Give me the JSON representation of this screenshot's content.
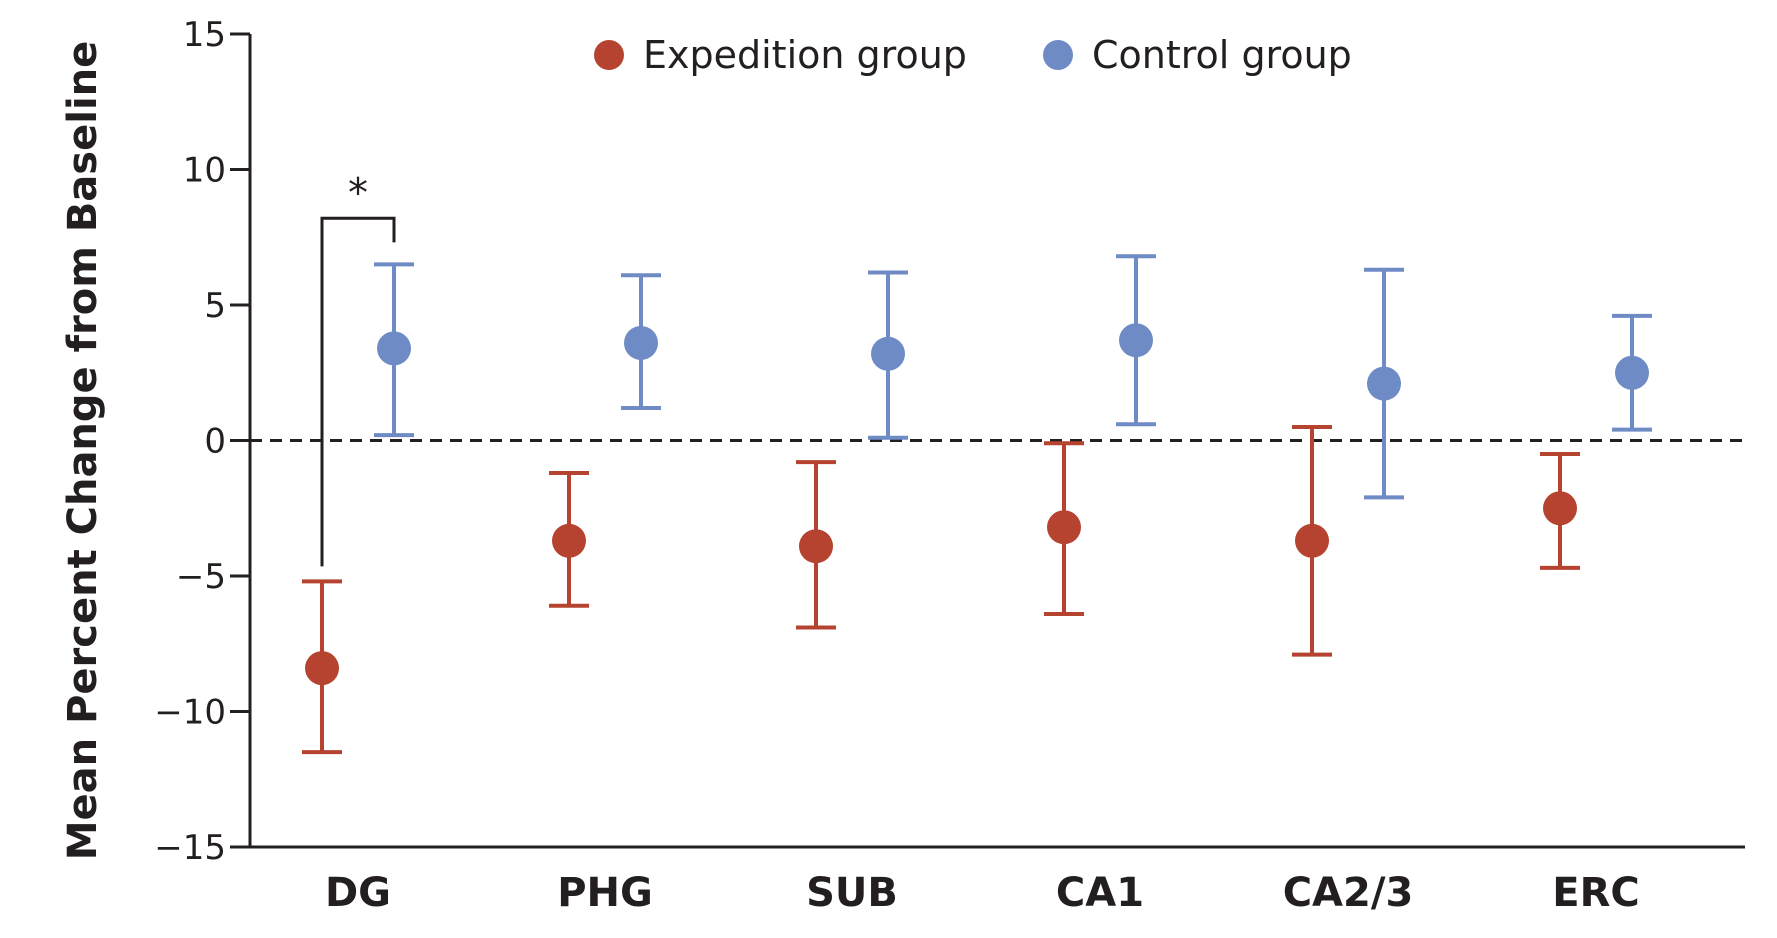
{
  "chart_data": {
    "type": "scatter",
    "title": "",
    "xlabel": "",
    "ylabel": "Mean Percent Change from Baseline",
    "ylim": [
      -15,
      15
    ],
    "yticks": [
      15,
      10,
      5,
      0,
      -5,
      -10,
      -15
    ],
    "ytick_labels": [
      "15",
      "10",
      "5",
      "0",
      "−5",
      "−10",
      "−15"
    ],
    "categories": [
      "DG",
      "PHG",
      "SUB",
      "CA1",
      "CA2/3",
      "ERC"
    ],
    "reference_line": 0,
    "legend_position": "top",
    "series": [
      {
        "name": "Expedition group",
        "color": "#b5432f",
        "values": [
          -8.4,
          -3.7,
          -3.9,
          -3.2,
          -3.7,
          -2.5
        ],
        "lower": [
          -11.5,
          -6.1,
          -6.9,
          -6.4,
          -7.9,
          -4.7
        ],
        "upper": [
          -5.2,
          -1.2,
          -0.8,
          -0.1,
          0.5,
          -0.5
        ]
      },
      {
        "name": "Control group",
        "color": "#6f8bc6",
        "values": [
          3.4,
          3.6,
          3.2,
          3.7,
          2.1,
          2.5
        ],
        "lower": [
          0.2,
          1.2,
          0.1,
          0.6,
          -2.1,
          0.4
        ],
        "upper": [
          6.5,
          6.1,
          6.2,
          6.8,
          6.3,
          4.6
        ]
      }
    ],
    "annotations": [
      {
        "text": "*",
        "category": "DG",
        "type": "significance-bracket",
        "y": 8.2
      }
    ]
  }
}
